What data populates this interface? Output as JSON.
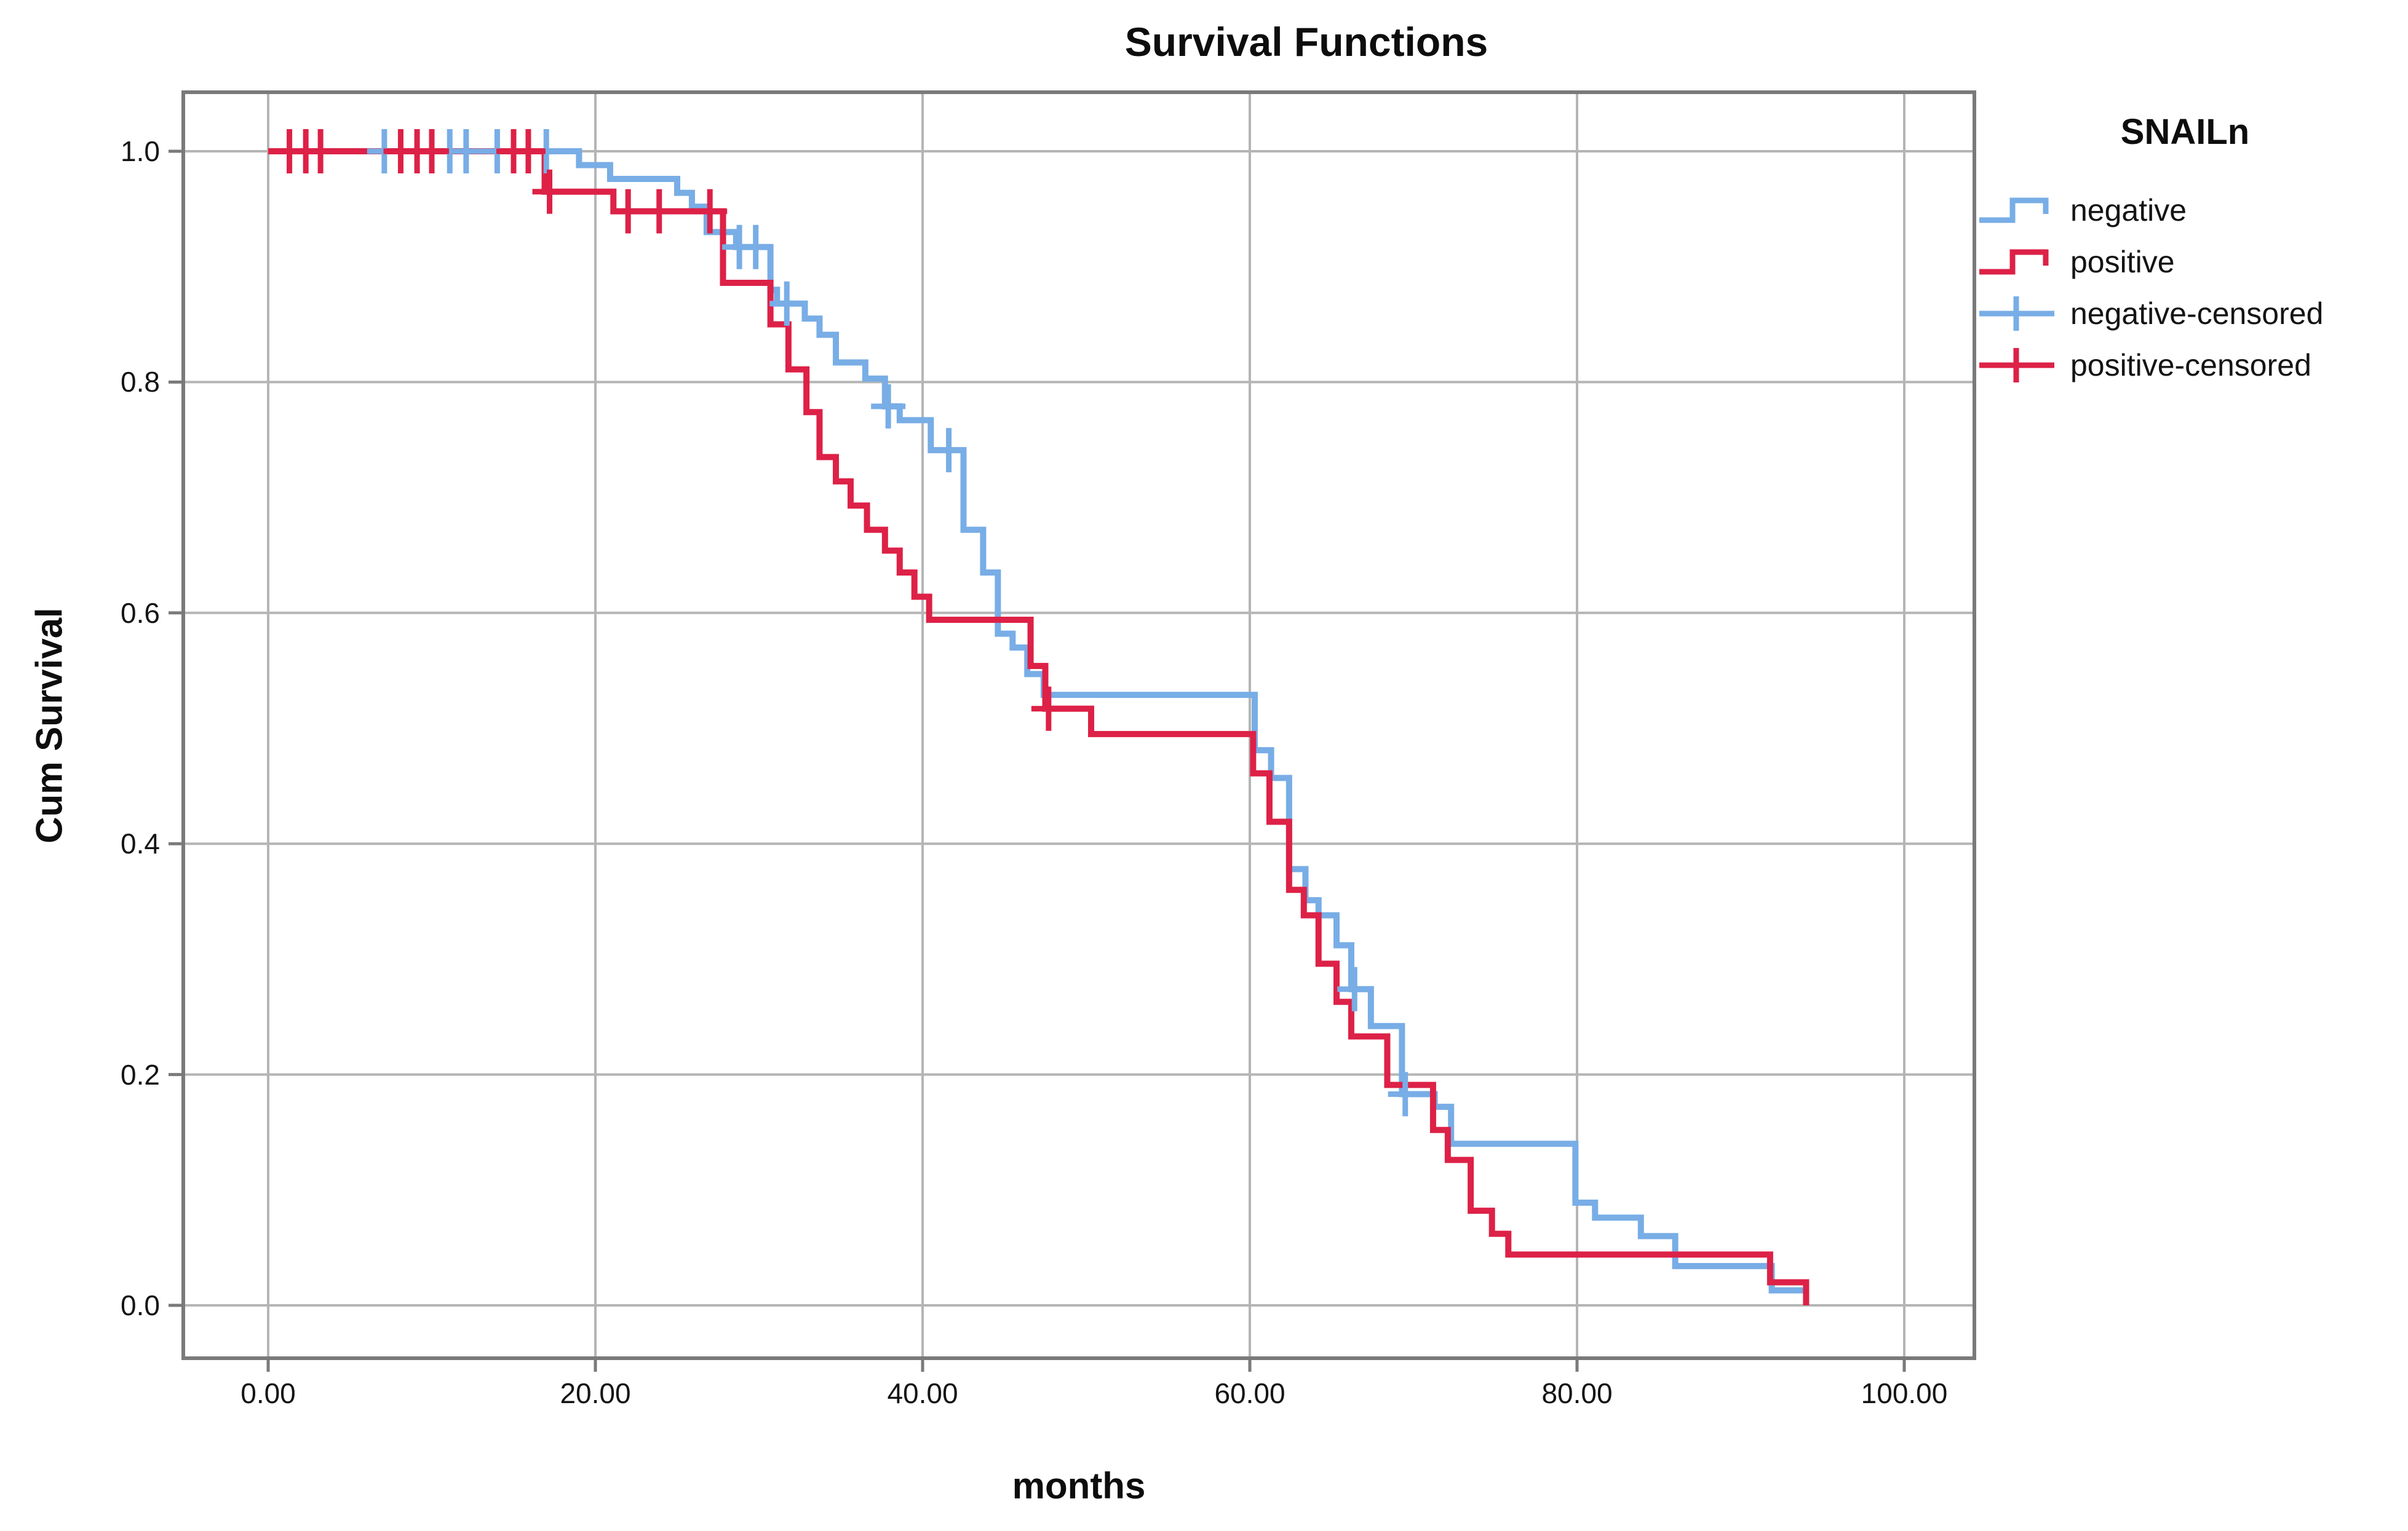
{
  "chart_data": {
    "type": "line",
    "style": "kaplan-meier-step",
    "title": "Survival Functions",
    "xlabel": "months",
    "ylabel": "Cum Survival",
    "grid": true,
    "legend_position": "right",
    "legend_title": "SNAILn",
    "xlim": [
      -5.2,
      104.3
    ],
    "ylim": [
      -0.046,
      1.051
    ],
    "xticks": {
      "values": [
        0,
        20,
        40,
        60,
        80,
        100
      ],
      "labels": [
        "0.00",
        "20.00",
        "40.00",
        "60.00",
        "80.00",
        "100.00"
      ]
    },
    "yticks": {
      "values": [
        1.0,
        0.8,
        0.6,
        0.4,
        0.2,
        0.0
      ],
      "labels": [
        "1.0",
        "0.8",
        "0.6",
        "0.4",
        "0.2",
        "0.0"
      ]
    },
    "series": [
      {
        "name": "negative",
        "color": "#78ADE6",
        "kind": "step",
        "end": 93.9,
        "steps": [
          [
            0,
            1.0
          ],
          [
            19.0,
            0.988
          ],
          [
            20.9,
            0.976
          ],
          [
            25.0,
            0.964
          ],
          [
            25.9,
            0.952
          ],
          [
            26.8,
            0.93
          ],
          [
            28.6,
            0.917
          ],
          [
            30.7,
            0.88
          ],
          [
            31.1,
            0.868
          ],
          [
            32.8,
            0.855
          ],
          [
            33.7,
            0.841
          ],
          [
            34.7,
            0.817
          ],
          [
            36.5,
            0.803
          ],
          [
            37.7,
            0.779
          ],
          [
            38.6,
            0.767
          ],
          [
            40.5,
            0.741
          ],
          [
            42.5,
            0.672
          ],
          [
            43.7,
            0.635
          ],
          [
            44.6,
            0.582
          ],
          [
            45.5,
            0.57
          ],
          [
            46.4,
            0.547
          ],
          [
            47.4,
            0.529
          ],
          [
            60.3,
            0.481
          ],
          [
            61.3,
            0.457
          ],
          [
            62.4,
            0.378
          ],
          [
            63.4,
            0.351
          ],
          [
            64.2,
            0.338
          ],
          [
            65.3,
            0.312
          ],
          [
            66.2,
            0.274
          ],
          [
            67.4,
            0.242
          ],
          [
            69.3,
            0.183
          ],
          [
            71.3,
            0.172
          ],
          [
            72.3,
            0.14
          ],
          [
            79.9,
            0.089
          ],
          [
            81.1,
            0.076
          ],
          [
            83.9,
            0.06
          ],
          [
            86.0,
            0.034
          ],
          [
            91.9,
            0.013
          ]
        ]
      },
      {
        "name": "positive",
        "color": "#DD2147",
        "kind": "step",
        "end": 94.0,
        "steps": [
          [
            0,
            1.0
          ],
          [
            16.9,
            0.965
          ],
          [
            21.1,
            0.948
          ],
          [
            27.8,
            0.886
          ],
          [
            30.7,
            0.85
          ],
          [
            31.8,
            0.811
          ],
          [
            32.9,
            0.774
          ],
          [
            33.7,
            0.735
          ],
          [
            34.7,
            0.714
          ],
          [
            35.6,
            0.693
          ],
          [
            36.6,
            0.672
          ],
          [
            37.7,
            0.654
          ],
          [
            38.6,
            0.635
          ],
          [
            39.5,
            0.614
          ],
          [
            40.4,
            0.594
          ],
          [
            46.6,
            0.554
          ],
          [
            47.5,
            0.517
          ],
          [
            50.3,
            0.495
          ],
          [
            60.2,
            0.461
          ],
          [
            61.2,
            0.419
          ],
          [
            62.4,
            0.36
          ],
          [
            63.3,
            0.338
          ],
          [
            64.2,
            0.296
          ],
          [
            65.3,
            0.263
          ],
          [
            66.2,
            0.233
          ],
          [
            68.4,
            0.191
          ],
          [
            71.2,
            0.152
          ],
          [
            72.1,
            0.126
          ],
          [
            73.5,
            0.082
          ],
          [
            74.8,
            0.062
          ],
          [
            75.8,
            0.044
          ],
          [
            91.8,
            0.02
          ],
          [
            94.0,
            0.0
          ]
        ]
      },
      {
        "name": "negative-censored",
        "color": "#78ADE6",
        "kind": "plus-marker",
        "points": [
          [
            7.1,
            1.0
          ],
          [
            11.1,
            1.0
          ],
          [
            12.1,
            1.0
          ],
          [
            14.0,
            1.0
          ],
          [
            17.0,
            1.0
          ],
          [
            28.8,
            0.917
          ],
          [
            29.8,
            0.917
          ],
          [
            31.7,
            0.868
          ],
          [
            37.9,
            0.779
          ],
          [
            41.6,
            0.741
          ],
          [
            66.4,
            0.274
          ],
          [
            69.5,
            0.183
          ]
        ]
      },
      {
        "name": "positive-censored",
        "color": "#DD2147",
        "kind": "plus-marker",
        "points": [
          [
            1.3,
            1.0
          ],
          [
            2.3,
            1.0
          ],
          [
            3.2,
            1.0
          ],
          [
            8.1,
            1.0
          ],
          [
            9.1,
            1.0
          ],
          [
            10.0,
            1.0
          ],
          [
            15.0,
            1.0
          ],
          [
            15.9,
            1.0
          ],
          [
            17.2,
            0.965
          ],
          [
            22.0,
            0.948
          ],
          [
            23.9,
            0.948
          ],
          [
            27.0,
            0.948
          ],
          [
            47.7,
            0.517
          ]
        ]
      }
    ]
  },
  "legend": {
    "title": "SNAILn",
    "items": [
      {
        "label": "negative"
      },
      {
        "label": "positive"
      },
      {
        "label": "negative-censored"
      },
      {
        "label": "positive-censored"
      }
    ]
  }
}
